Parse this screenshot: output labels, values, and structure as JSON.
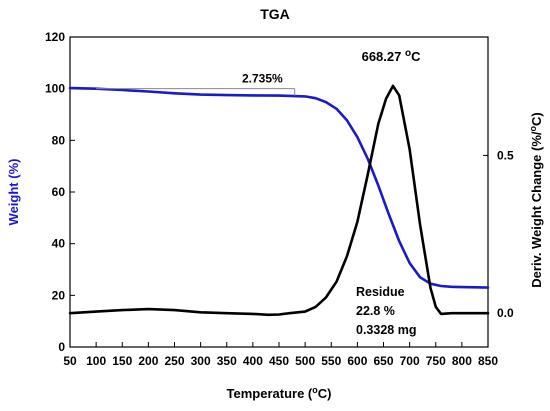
{
  "chart_data": {
    "type": "line",
    "title": "TGA",
    "xlabel": "Temperature (oC)",
    "xlabel_parts": {
      "text": "Temperature (",
      "sup": "o",
      "end": "C)"
    },
    "ylabel_left": "Weight (%)",
    "ylabel_right": "Deriv. Weight Change (%/oC)",
    "ylabel_right_parts": {
      "text": "Deriv. Weight Change (%/",
      "sup": "o",
      "end": "C)"
    },
    "xlim": [
      50,
      850
    ],
    "ylim_left": [
      0,
      120
    ],
    "ylim_right": [
      -0.107,
      0.875
    ],
    "x_ticks": [
      50,
      100,
      150,
      200,
      250,
      300,
      350,
      400,
      450,
      500,
      550,
      600,
      650,
      700,
      750,
      800,
      850
    ],
    "y_left_ticks": [
      0,
      20,
      40,
      60,
      80,
      100,
      120
    ],
    "y_right_ticks": [
      0.0,
      0.5
    ],
    "y_right_tick_labels": [
      "0.0",
      "0.5"
    ],
    "colors": {
      "weight": "#1a1acc",
      "derivative": "#000000",
      "annotation_line": "#888888",
      "text": "#000000"
    },
    "series": [
      {
        "name": "Weight (%)",
        "axis": "left",
        "color": "#1a1acc",
        "x": [
          50,
          100,
          150,
          200,
          250,
          300,
          350,
          400,
          450,
          500,
          520,
          540,
          560,
          580,
          600,
          620,
          640,
          660,
          680,
          700,
          720,
          740,
          760,
          780,
          800,
          850
        ],
        "y": [
          100.2,
          100.0,
          99.5,
          98.9,
          98.2,
          97.7,
          97.5,
          97.4,
          97.3,
          97.0,
          96.3,
          94.8,
          92.2,
          87.8,
          81.2,
          72.8,
          62.5,
          51.5,
          41.0,
          32.5,
          27.0,
          24.5,
          23.6,
          23.3,
          23.2,
          23.0
        ]
      },
      {
        "name": "Deriv. Weight Change (%/oC)",
        "axis": "right",
        "color": "#000000",
        "x": [
          50,
          100,
          150,
          200,
          250,
          300,
          350,
          400,
          430,
          450,
          470,
          500,
          520,
          540,
          560,
          580,
          600,
          620,
          640,
          655,
          668.27,
          680,
          700,
          720,
          740,
          750,
          760,
          780,
          800,
          850
        ],
        "y": [
          0.0,
          0.005,
          0.01,
          0.013,
          0.01,
          0.003,
          0.0,
          -0.002,
          -0.005,
          -0.004,
          0.0,
          0.005,
          0.02,
          0.05,
          0.1,
          0.18,
          0.29,
          0.44,
          0.6,
          0.68,
          0.72,
          0.69,
          0.52,
          0.28,
          0.08,
          0.02,
          -0.002,
          0.0,
          0.0,
          0.0
        ]
      }
    ],
    "annotations": {
      "peak_label": {
        "text": "668.27 ",
        "sup": "o",
        "end": "C",
        "x": 668.27
      },
      "weight_loss_label": "2.735%",
      "weight_loss_bracket": {
        "x_start": 100,
        "x_end": 480,
        "y_top": 100,
        "y_bottom": 97.3
      },
      "residue": [
        "Residue",
        "22.8 %",
        "0.3328 mg"
      ]
    },
    "grid": false,
    "legend": "none"
  }
}
